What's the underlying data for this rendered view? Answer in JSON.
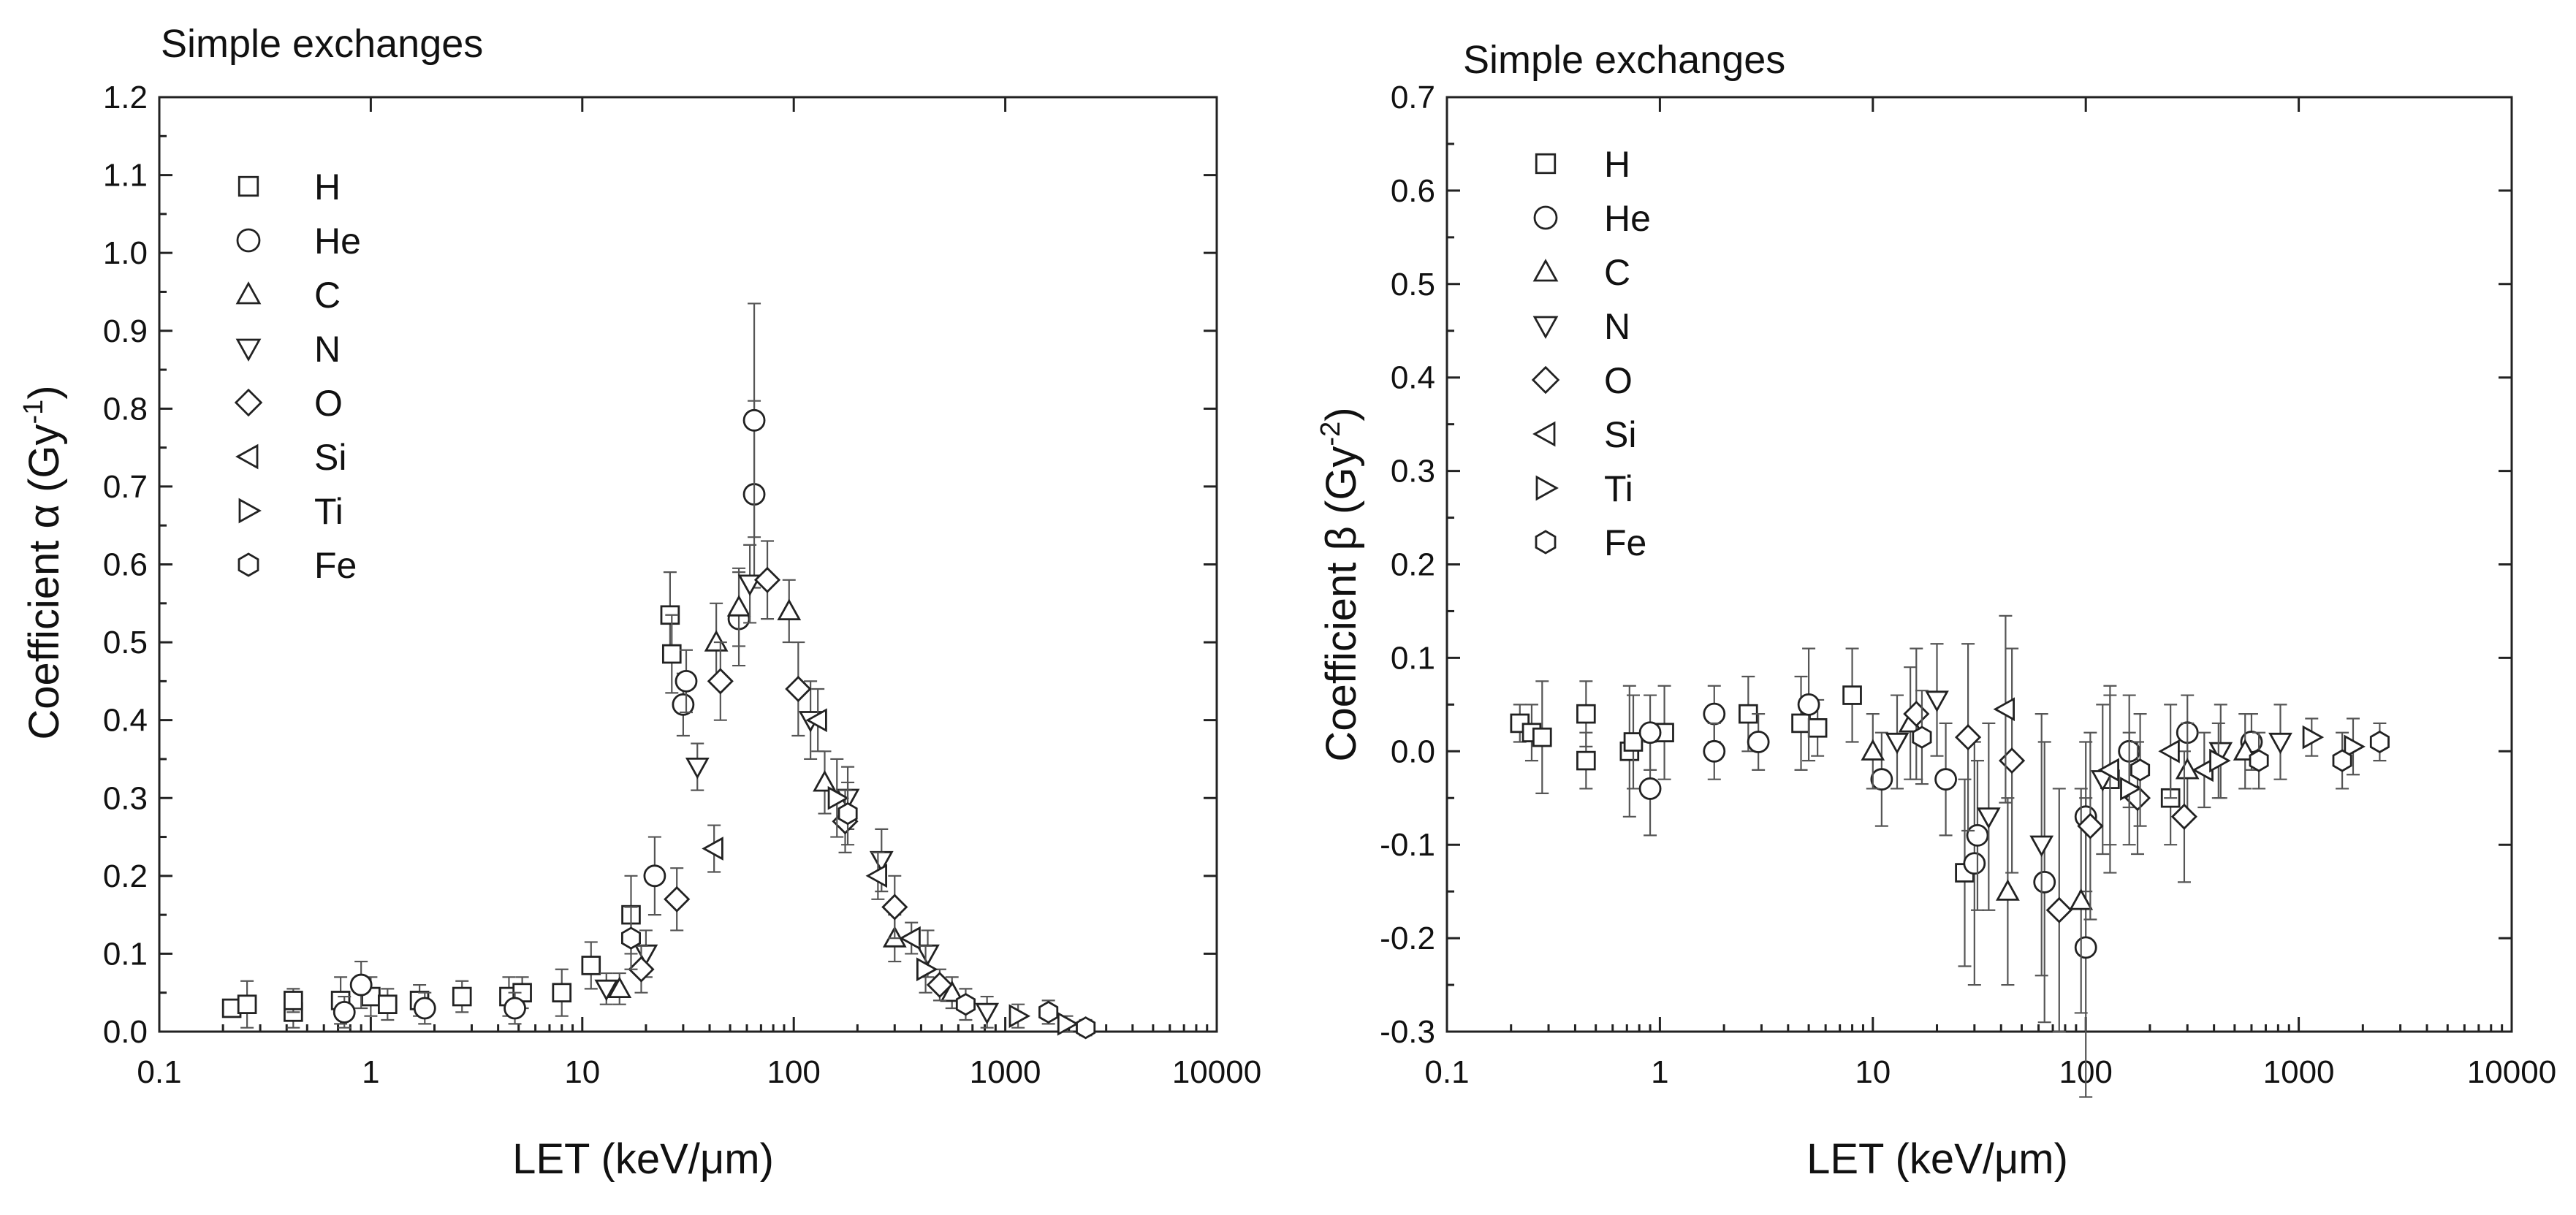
{
  "colors": {
    "axis": "#222222",
    "marker_stroke": "#222222",
    "error_bar": "#555555",
    "background": "#ffffff"
  },
  "legend": [
    {
      "label": "H",
      "marker": "square"
    },
    {
      "label": "He",
      "marker": "circle"
    },
    {
      "label": "C",
      "marker": "triangle-up"
    },
    {
      "label": "N",
      "marker": "triangle-down"
    },
    {
      "label": "O",
      "marker": "diamond"
    },
    {
      "label": "Si",
      "marker": "triangle-left"
    },
    {
      "label": "Ti",
      "marker": "triangle-right"
    },
    {
      "label": "Fe",
      "marker": "hexagon"
    }
  ],
  "chart_data": [
    {
      "type": "scatter",
      "title": "Simple exchanges",
      "xlabel": "LET (keV/μm)",
      "ylabel_prefix": "Coefficient α (Gy",
      "ylabel_exp": "-1",
      "ylabel_suffix": ")",
      "xscale": "log",
      "xlim": [
        0.1,
        10000
      ],
      "ylim": [
        0.0,
        1.2
      ],
      "xticks": [
        0.1,
        1,
        10,
        100,
        1000,
        10000
      ],
      "xtick_labels": [
        "0.1",
        "1",
        "10",
        "100",
        "1000",
        "10000"
      ],
      "yticks": [
        0.0,
        0.1,
        0.2,
        0.3,
        0.4,
        0.5,
        0.6,
        0.7,
        0.8,
        0.9,
        1.0,
        1.1,
        1.2
      ],
      "ytick_labels": [
        "0.0",
        "0.1",
        "0.2",
        "0.3",
        "0.4",
        "0.5",
        "0.6",
        "0.7",
        "0.8",
        "0.9",
        "1.0",
        "1.1",
        "1.2"
      ],
      "legend_position": "top-left",
      "series": [
        {
          "name": "H",
          "marker": "square",
          "points": [
            {
              "x": 0.22,
              "y": 0.03,
              "err": 0.01
            },
            {
              "x": 0.26,
              "y": 0.035,
              "err": 0.03
            },
            {
              "x": 0.43,
              "y": 0.025,
              "err": 0.02
            },
            {
              "x": 0.43,
              "y": 0.04,
              "err": 0.015
            },
            {
              "x": 0.72,
              "y": 0.04,
              "err": 0.03
            },
            {
              "x": 1.0,
              "y": 0.045,
              "err": 0.025
            },
            {
              "x": 1.2,
              "y": 0.035,
              "err": 0.02
            },
            {
              "x": 1.7,
              "y": 0.04,
              "err": 0.02
            },
            {
              "x": 2.7,
              "y": 0.045,
              "err": 0.02
            },
            {
              "x": 4.5,
              "y": 0.045,
              "err": 0.025
            },
            {
              "x": 5.2,
              "y": 0.05,
              "err": 0.02
            },
            {
              "x": 8.0,
              "y": 0.05,
              "err": 0.03
            },
            {
              "x": 11,
              "y": 0.085,
              "err": 0.03
            },
            {
              "x": 17,
              "y": 0.15,
              "err": 0.05
            },
            {
              "x": 26,
              "y": 0.535,
              "err": 0.055
            },
            {
              "x": 26.5,
              "y": 0.485,
              "err": 0.05
            }
          ]
        },
        {
          "name": "He",
          "marker": "circle",
          "points": [
            {
              "x": 0.9,
              "y": 0.06,
              "err": 0.03
            },
            {
              "x": 0.75,
              "y": 0.025,
              "err": 0.02
            },
            {
              "x": 1.8,
              "y": 0.03,
              "err": 0.02
            },
            {
              "x": 4.8,
              "y": 0.03,
              "err": 0.02
            },
            {
              "x": 22,
              "y": 0.2,
              "err": 0.05
            },
            {
              "x": 30,
              "y": 0.42,
              "err": 0.04
            },
            {
              "x": 31,
              "y": 0.45,
              "err": 0.04
            },
            {
              "x": 55,
              "y": 0.53,
              "err": 0.06
            },
            {
              "x": 65,
              "y": 0.69,
              "err": 0.12
            },
            {
              "x": 65,
              "y": 0.785,
              "err": 0.15
            }
          ]
        },
        {
          "name": "C",
          "marker": "triangle-up",
          "points": [
            {
              "x": 15,
              "y": 0.055,
              "err": 0.02
            },
            {
              "x": 43,
              "y": 0.5,
              "err": 0.05
            },
            {
              "x": 55,
              "y": 0.545,
              "err": 0.05
            },
            {
              "x": 95,
              "y": 0.54,
              "err": 0.04
            },
            {
              "x": 140,
              "y": 0.32,
              "err": 0.04
            },
            {
              "x": 300,
              "y": 0.12,
              "err": 0.03
            },
            {
              "x": 560,
              "y": 0.05,
              "err": 0.02
            }
          ]
        },
        {
          "name": "N",
          "marker": "triangle-down",
          "points": [
            {
              "x": 13,
              "y": 0.055,
              "err": 0.02
            },
            {
              "x": 20,
              "y": 0.1,
              "err": 0.03
            },
            {
              "x": 35,
              "y": 0.34,
              "err": 0.03
            },
            {
              "x": 62,
              "y": 0.575,
              "err": 0.05
            },
            {
              "x": 120,
              "y": 0.4,
              "err": 0.05
            },
            {
              "x": 180,
              "y": 0.3,
              "err": 0.04
            },
            {
              "x": 260,
              "y": 0.22,
              "err": 0.04
            },
            {
              "x": 430,
              "y": 0.1,
              "err": 0.03
            },
            {
              "x": 820,
              "y": 0.025,
              "err": 0.02
            }
          ]
        },
        {
          "name": "O",
          "marker": "diamond",
          "points": [
            {
              "x": 19,
              "y": 0.08,
              "err": 0.03
            },
            {
              "x": 28,
              "y": 0.17,
              "err": 0.04
            },
            {
              "x": 45,
              "y": 0.45,
              "err": 0.05
            },
            {
              "x": 75,
              "y": 0.58,
              "err": 0.05
            },
            {
              "x": 105,
              "y": 0.44,
              "err": 0.06
            },
            {
              "x": 175,
              "y": 0.27,
              "err": 0.04
            },
            {
              "x": 300,
              "y": 0.16,
              "err": 0.04
            },
            {
              "x": 490,
              "y": 0.06,
              "err": 0.02
            }
          ]
        },
        {
          "name": "Si",
          "marker": "triangle-left",
          "points": [
            {
              "x": 42,
              "y": 0.235,
              "err": 0.03
            },
            {
              "x": 130,
              "y": 0.4,
              "err": 0.04
            },
            {
              "x": 250,
              "y": 0.2,
              "err": 0.03
            },
            {
              "x": 360,
              "y": 0.12,
              "err": 0.02
            }
          ]
        },
        {
          "name": "Ti",
          "marker": "triangle-right",
          "points": [
            {
              "x": 160,
              "y": 0.3,
              "err": 0.05
            },
            {
              "x": 420,
              "y": 0.08,
              "err": 0.03
            },
            {
              "x": 1150,
              "y": 0.02,
              "err": 0.015
            },
            {
              "x": 1950,
              "y": 0.01,
              "err": 0.01
            }
          ]
        },
        {
          "name": "Fe",
          "marker": "hexagon",
          "points": [
            {
              "x": 17,
              "y": 0.12,
              "err": 0.04
            },
            {
              "x": 180,
              "y": 0.28,
              "err": 0.04
            },
            {
              "x": 650,
              "y": 0.035,
              "err": 0.02
            },
            {
              "x": 1600,
              "y": 0.025,
              "err": 0.015
            },
            {
              "x": 2400,
              "y": 0.005,
              "err": 0.01
            }
          ]
        }
      ]
    },
    {
      "type": "scatter",
      "title": "Simple exchanges",
      "xlabel": "LET (keV/μm)",
      "ylabel_prefix": "Coefficient β (Gy",
      "ylabel_exp": "-2",
      "ylabel_suffix": ")",
      "xscale": "log",
      "xlim": [
        0.1,
        10000
      ],
      "ylim": [
        -0.3,
        0.7
      ],
      "xticks": [
        0.1,
        1,
        10,
        100,
        1000,
        10000
      ],
      "xtick_labels": [
        "0.1",
        "1",
        "10",
        "100",
        "1000",
        "10000"
      ],
      "yticks": [
        -0.3,
        -0.2,
        -0.1,
        0.0,
        0.1,
        0.2,
        0.3,
        0.4,
        0.5,
        0.6,
        0.7
      ],
      "ytick_labels": [
        "-0.3",
        "-0.2",
        "-0.1",
        "0.0",
        "0.1",
        "0.2",
        "0.3",
        "0.4",
        "0.5",
        "0.6",
        "0.7"
      ],
      "legend_position": "top-left",
      "series": [
        {
          "name": "H",
          "marker": "square",
          "points": [
            {
              "x": 0.22,
              "y": 0.03,
              "err": 0.02
            },
            {
              "x": 0.25,
              "y": 0.02,
              "err": 0.03
            },
            {
              "x": 0.28,
              "y": 0.015,
              "err": 0.06
            },
            {
              "x": 0.45,
              "y": 0.04,
              "err": 0.035
            },
            {
              "x": 0.45,
              "y": -0.01,
              "err": 0.03
            },
            {
              "x": 0.72,
              "y": 0.0,
              "err": 0.07
            },
            {
              "x": 0.75,
              "y": 0.01,
              "err": 0.05
            },
            {
              "x": 1.05,
              "y": 0.02,
              "err": 0.05
            },
            {
              "x": 2.6,
              "y": 0.04,
              "err": 0.04
            },
            {
              "x": 4.6,
              "y": 0.03,
              "err": 0.05
            },
            {
              "x": 5.5,
              "y": 0.025,
              "err": 0.03
            },
            {
              "x": 8.0,
              "y": 0.06,
              "err": 0.05
            },
            {
              "x": 27,
              "y": -0.13,
              "err": 0.1
            },
            {
              "x": 130,
              "y": -0.03,
              "err": 0.1
            },
            {
              "x": 250,
              "y": -0.05,
              "err": 0.05
            }
          ]
        },
        {
          "name": "He",
          "marker": "circle",
          "points": [
            {
              "x": 0.9,
              "y": -0.04,
              "err": 0.05
            },
            {
              "x": 0.9,
              "y": 0.02,
              "err": 0.04
            },
            {
              "x": 1.8,
              "y": 0.04,
              "err": 0.03
            },
            {
              "x": 1.8,
              "y": 0.0,
              "err": 0.03
            },
            {
              "x": 2.9,
              "y": 0.01,
              "err": 0.03
            },
            {
              "x": 5.0,
              "y": 0.05,
              "err": 0.06
            },
            {
              "x": 11,
              "y": -0.03,
              "err": 0.05
            },
            {
              "x": 22,
              "y": -0.03,
              "err": 0.06
            },
            {
              "x": 30,
              "y": -0.12,
              "err": 0.13
            },
            {
              "x": 31,
              "y": -0.09,
              "err": 0.08
            },
            {
              "x": 64,
              "y": -0.14,
              "err": 0.15
            },
            {
              "x": 100,
              "y": -0.21,
              "err": 0.16
            },
            {
              "x": 100,
              "y": -0.07,
              "err": 0.08
            },
            {
              "x": 160,
              "y": 0.0,
              "err": 0.06
            },
            {
              "x": 300,
              "y": 0.02,
              "err": 0.04
            },
            {
              "x": 600,
              "y": 0.01,
              "err": 0.03
            }
          ]
        },
        {
          "name": "C",
          "marker": "triangle-up",
          "points": [
            {
              "x": 10,
              "y": 0.0,
              "err": 0.04
            },
            {
              "x": 15,
              "y": 0.03,
              "err": 0.06
            },
            {
              "x": 43,
              "y": -0.15,
              "err": 0.1
            },
            {
              "x": 95,
              "y": -0.16,
              "err": 0.12
            },
            {
              "x": 300,
              "y": -0.02,
              "err": 0.05
            },
            {
              "x": 560,
              "y": 0.0,
              "err": 0.04
            }
          ]
        },
        {
          "name": "N",
          "marker": "triangle-down",
          "points": [
            {
              "x": 13,
              "y": 0.01,
              "err": 0.05
            },
            {
              "x": 20,
              "y": 0.055,
              "err": 0.06
            },
            {
              "x": 35,
              "y": -0.07,
              "err": 0.1
            },
            {
              "x": 62,
              "y": -0.1,
              "err": 0.14
            },
            {
              "x": 120,
              "y": -0.03,
              "err": 0.08
            },
            {
              "x": 430,
              "y": 0.0,
              "err": 0.05
            },
            {
              "x": 820,
              "y": 0.01,
              "err": 0.04
            }
          ]
        },
        {
          "name": "O",
          "marker": "diamond",
          "points": [
            {
              "x": 16,
              "y": 0.04,
              "err": 0.07
            },
            {
              "x": 28,
              "y": 0.015,
              "err": 0.1
            },
            {
              "x": 45,
              "y": -0.01,
              "err": 0.12
            },
            {
              "x": 75,
              "y": -0.17,
              "err": 0.13
            },
            {
              "x": 105,
              "y": -0.08,
              "err": 0.1
            },
            {
              "x": 175,
              "y": -0.05,
              "err": 0.06
            },
            {
              "x": 290,
              "y": -0.07,
              "err": 0.07
            }
          ]
        },
        {
          "name": "Si",
          "marker": "triangle-left",
          "points": [
            {
              "x": 42,
              "y": 0.045,
              "err": 0.1
            },
            {
              "x": 130,
              "y": -0.02,
              "err": 0.08
            },
            {
              "x": 250,
              "y": 0.0,
              "err": 0.05
            },
            {
              "x": 360,
              "y": -0.02,
              "err": 0.04
            }
          ]
        },
        {
          "name": "Ti",
          "marker": "triangle-right",
          "points": [
            {
              "x": 160,
              "y": -0.04,
              "err": 0.06
            },
            {
              "x": 420,
              "y": -0.01,
              "err": 0.04
            },
            {
              "x": 1150,
              "y": 0.015,
              "err": 0.02
            },
            {
              "x": 1800,
              "y": 0.005,
              "err": 0.03
            }
          ]
        },
        {
          "name": "Fe",
          "marker": "hexagon",
          "points": [
            {
              "x": 17,
              "y": 0.015,
              "err": 0.05
            },
            {
              "x": 180,
              "y": -0.02,
              "err": 0.06
            },
            {
              "x": 650,
              "y": -0.01,
              "err": 0.03
            },
            {
              "x": 1600,
              "y": -0.01,
              "err": 0.03
            },
            {
              "x": 2400,
              "y": 0.01,
              "err": 0.02
            }
          ]
        }
      ]
    }
  ]
}
